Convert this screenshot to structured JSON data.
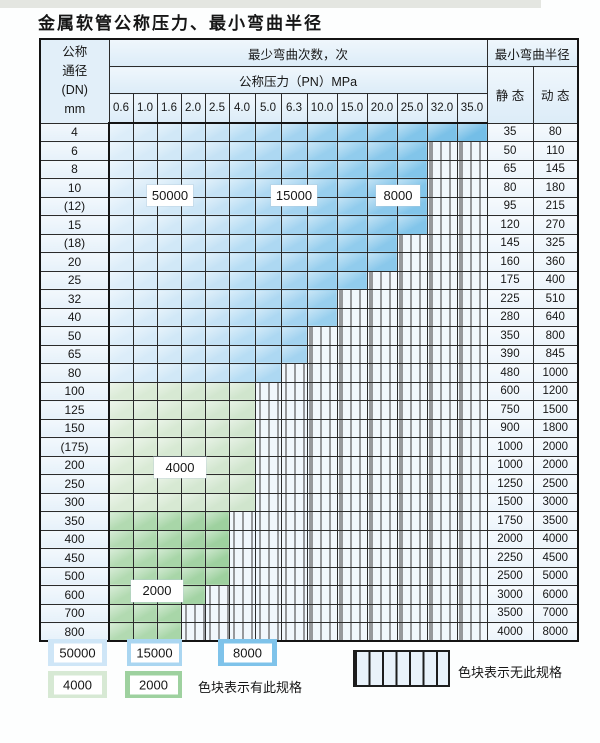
{
  "title": "金属软管公称压力、最小弯曲半径",
  "table": {
    "corner_l1": "公称",
    "corner_l2": "通径",
    "corner_l3": "(DN)",
    "corner_l4": "mm",
    "bend_header": "最少弯曲次数，次",
    "pressure_header": "公称压力（PN）MPa",
    "radius_header": "最小弯曲半径",
    "static_label": "静 态",
    "dynamic_label": "动 态",
    "pressure_columns": [
      "0.6",
      "1.0",
      "1.6",
      "2.0",
      "2.5",
      "4.0",
      "5.0",
      "6.3",
      "10.0",
      "15.0",
      "20.0",
      "25.0",
      "32.0",
      "35.0"
    ],
    "rows": [
      {
        "dn": "4",
        "group": "blue",
        "colored": 14,
        "static": "35",
        "dynamic": "80"
      },
      {
        "dn": "6",
        "group": "blue",
        "colored": 12,
        "static": "50",
        "dynamic": "110"
      },
      {
        "dn": "8",
        "group": "blue",
        "colored": 12,
        "static": "65",
        "dynamic": "145"
      },
      {
        "dn": "10",
        "group": "blue",
        "colored": 12,
        "static": "80",
        "dynamic": "180"
      },
      {
        "dn": "(12)",
        "group": "blue",
        "colored": 12,
        "static": "95",
        "dynamic": "215"
      },
      {
        "dn": "15",
        "group": "blue",
        "colored": 12,
        "static": "120",
        "dynamic": "270"
      },
      {
        "dn": "(18)",
        "group": "blue",
        "colored": 11,
        "static": "145",
        "dynamic": "325"
      },
      {
        "dn": "20",
        "group": "blue",
        "colored": 11,
        "static": "160",
        "dynamic": "360"
      },
      {
        "dn": "25",
        "group": "blue",
        "colored": 10,
        "static": "175",
        "dynamic": "400"
      },
      {
        "dn": "32",
        "group": "blue",
        "colored": 9,
        "static": "225",
        "dynamic": "510"
      },
      {
        "dn": "40",
        "group": "blue",
        "colored": 9,
        "static": "280",
        "dynamic": "640"
      },
      {
        "dn": "50",
        "group": "blue",
        "colored": 8,
        "static": "350",
        "dynamic": "800"
      },
      {
        "dn": "65",
        "group": "blue",
        "colored": 8,
        "static": "390",
        "dynamic": "845"
      },
      {
        "dn": "80",
        "group": "blue",
        "colored": 7,
        "static": "480",
        "dynamic": "1000"
      },
      {
        "dn": "100",
        "group": "g4000",
        "colored": 6,
        "static": "600",
        "dynamic": "1200"
      },
      {
        "dn": "125",
        "group": "g4000",
        "colored": 6,
        "static": "750",
        "dynamic": "1500"
      },
      {
        "dn": "150",
        "group": "g4000",
        "colored": 6,
        "static": "900",
        "dynamic": "1800"
      },
      {
        "dn": "(175)",
        "group": "g4000",
        "colored": 6,
        "static": "1000",
        "dynamic": "2000"
      },
      {
        "dn": "200",
        "group": "g4000",
        "colored": 6,
        "static": "1000",
        "dynamic": "2000"
      },
      {
        "dn": "250",
        "group": "g4000",
        "colored": 6,
        "static": "1250",
        "dynamic": "2500"
      },
      {
        "dn": "300",
        "group": "g4000",
        "colored": 6,
        "static": "1500",
        "dynamic": "3000"
      },
      {
        "dn": "350",
        "group": "g2000",
        "colored": 5,
        "static": "1750",
        "dynamic": "3500"
      },
      {
        "dn": "400",
        "group": "g2000",
        "colored": 5,
        "static": "2000",
        "dynamic": "4000"
      },
      {
        "dn": "450",
        "group": "g2000",
        "colored": 5,
        "static": "2250",
        "dynamic": "4500"
      },
      {
        "dn": "500",
        "group": "g2000",
        "colored": 5,
        "static": "2500",
        "dynamic": "5000"
      },
      {
        "dn": "600",
        "group": "g2000",
        "colored": 4,
        "static": "3000",
        "dynamic": "6000"
      },
      {
        "dn": "700",
        "group": "g2000",
        "colored": 3,
        "static": "3500",
        "dynamic": "7000"
      },
      {
        "dn": "800",
        "group": "g2000",
        "colored": 3,
        "static": "4000",
        "dynamic": "8000"
      }
    ]
  },
  "zones": {
    "z50000": {
      "label": "50000",
      "start": "#dcedf9",
      "end": "#c5e2f5",
      "col_start": 0,
      "col_span": 5
    },
    "z15000": {
      "label": "15000",
      "start": "#b7ddf4",
      "end": "#a3d3f0",
      "col_start": 5,
      "col_span": 3
    },
    "z8000": {
      "label": "8000",
      "start": "#98cfee",
      "end": "#74bee7",
      "col_start": 8,
      "col_span": 6
    },
    "z4000": {
      "label": "4000",
      "start": "#dbebd7",
      "end": "#d0e5cd",
      "col_start": 0,
      "col_span": 6
    },
    "z2000": {
      "label": "2000",
      "start": "#b2dab1",
      "end": "#9ed19f",
      "col_start": 0,
      "col_span": 5
    }
  },
  "legend": {
    "has_spec_text": "色块表示有此规格",
    "no_spec_text": "色块表示无此规格",
    "swatch_50000": "#cfe6f7",
    "swatch_15000": "#aad6f1",
    "swatch_8000": "#7fc3ea",
    "swatch_4000": "#d7e9d4",
    "swatch_2000": "#9ed19f",
    "hatch_bg": "#f1f7fc",
    "hatch_line": "#3a3a3a"
  }
}
